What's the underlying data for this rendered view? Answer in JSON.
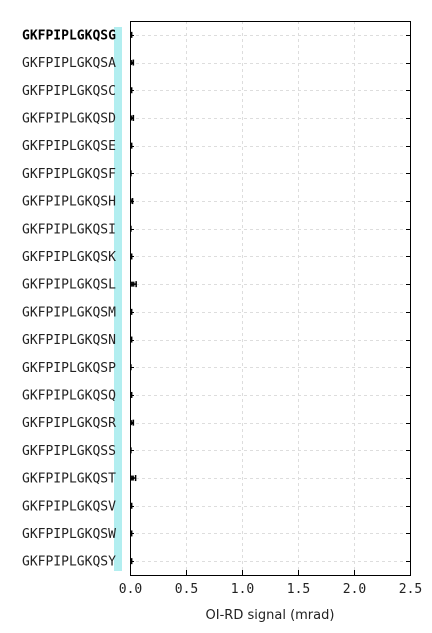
{
  "chart_data": {
    "type": "bar",
    "orientation": "horizontal",
    "title": "",
    "xlabel": "OI-RD signal (mrad)",
    "ylabel": "",
    "xlim": [
      0,
      2.5
    ],
    "xticks": [
      "0.0",
      "0.5",
      "1.0",
      "1.5",
      "2.0",
      "2.5"
    ],
    "grid": true,
    "highlight_color": "#b2eef0",
    "highlight_category": "GKFPIPLGKQSG",
    "categories": [
      "GKFPIPLGKQSG",
      "GKFPIPLGKQSA",
      "GKFPIPLGKQSC",
      "GKFPIPLGKQSD",
      "GKFPIPLGKQSE",
      "GKFPIPLGKQSF",
      "GKFPIPLGKQSH",
      "GKFPIPLGKQSI",
      "GKFPIPLGKQSK",
      "GKFPIPLGKQSL",
      "GKFPIPLGKQSM",
      "GKFPIPLGKQSN",
      "GKFPIPLGKQSP",
      "GKFPIPLGKQSQ",
      "GKFPIPLGKQSR",
      "GKFPIPLGKQSS",
      "GKFPIPLGKQST",
      "GKFPIPLGKQSV",
      "GKFPIPLGKQSW",
      "GKFPIPLGKQSY"
    ],
    "values": [
      0.01,
      0.02,
      0.01,
      0.02,
      0.01,
      0.005,
      0.015,
      0.005,
      0.01,
      0.04,
      0.01,
      0.01,
      0.005,
      0.01,
      0.02,
      0.005,
      0.035,
      0.01,
      0.01,
      0.01
    ],
    "errors": [
      0.005,
      0.01,
      0.005,
      0.01,
      0.005,
      0.003,
      0.008,
      0.003,
      0.005,
      0.015,
      0.005,
      0.005,
      0.003,
      0.005,
      0.01,
      0.003,
      0.015,
      0.005,
      0.005,
      0.005
    ]
  }
}
